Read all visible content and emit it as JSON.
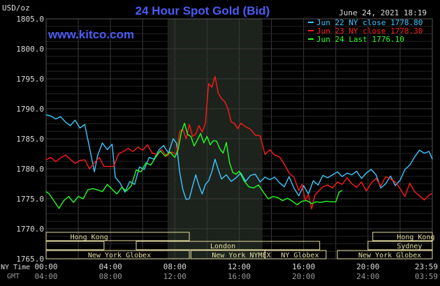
{
  "header": {
    "unit_label": "USD/oz",
    "title": "24 Hour Spot Gold (Bid)",
    "datetime": "June 24, 2021 18:19",
    "brand": "www.kitco.com"
  },
  "colors": {
    "background": "#000000",
    "title": "#4b5cf5",
    "brand": "#4b5cf5",
    "grid": "#3a3a3a",
    "session_shade": "#1c231c",
    "market_bar": "#e8dfa2",
    "series_jun22": "#3cc8ff",
    "series_jun23": "#ff1a1a",
    "series_jun24": "#22ff22",
    "axis_text": "#dddddd",
    "legend_text": "#ffffff"
  },
  "markets": {
    "row1": [
      "Hong Kong",
      "Hong Kong"
    ],
    "row2": [
      "London",
      "Sydney"
    ],
    "row3": [
      "New York Globex",
      "New York NYMEX",
      "NY Globex",
      "New York Globex"
    ]
  },
  "time_axis": {
    "row1_label": "NY Time",
    "row2_label": "GMT",
    "ny_ticks": [
      "00:00",
      "04:00",
      "08:00",
      "12:00",
      "16:00",
      "20:00",
      "23:59"
    ],
    "gmt_ticks": [
      "04:00",
      "08:00",
      "12:00",
      "16:00",
      "20:00",
      "24:00",
      "03:59"
    ]
  },
  "chart_data": {
    "type": "line",
    "title": "24 Hour Spot Gold (Bid)",
    "ylabel": "USD/oz",
    "xlabel": "",
    "x_unit": "hours (NY time)",
    "xlim": [
      0,
      24
    ],
    "ylim": [
      1765,
      1805
    ],
    "yticks": [
      "1765.0",
      "1770.0",
      "1775.0",
      "1780.0",
      "1785.0",
      "1790.0",
      "1795.0",
      "1800.0",
      "1805.0"
    ],
    "grid": true,
    "legend_position": "top-right",
    "series": [
      {
        "name": "Jun 22 NY close 1778.80",
        "color": "#3cc8ff",
        "points": [
          [
            0,
            1789
          ],
          [
            0.3,
            1788.8
          ],
          [
            0.6,
            1788.3
          ],
          [
            0.9,
            1788.7
          ],
          [
            1.2,
            1787.8
          ],
          [
            1.5,
            1787.2
          ],
          [
            1.8,
            1788.1
          ],
          [
            2.1,
            1786.8
          ],
          [
            2.4,
            1787.4
          ],
          [
            2.7,
            1783.5
          ],
          [
            3.0,
            1779.5
          ],
          [
            3.2,
            1782.2
          ],
          [
            3.5,
            1784.3
          ],
          [
            3.8,
            1783.2
          ],
          [
            4.1,
            1784.1
          ],
          [
            4.3,
            1778.6
          ],
          [
            4.6,
            1777.6
          ],
          [
            4.9,
            1776.1
          ],
          [
            5.2,
            1777.9
          ],
          [
            5.5,
            1777.4
          ],
          [
            5.8,
            1780.3
          ],
          [
            6.1,
            1779.9
          ],
          [
            6.4,
            1781.9
          ],
          [
            6.7,
            1781.6
          ],
          [
            7.0,
            1783.1
          ],
          [
            7.3,
            1783.9
          ],
          [
            7.6,
            1782.6
          ],
          [
            7.9,
            1785.0
          ],
          [
            8.1,
            1784.3
          ],
          [
            8.3,
            1779.5
          ],
          [
            8.5,
            1776.5
          ],
          [
            8.7,
            1774.9
          ],
          [
            8.9,
            1775.0
          ],
          [
            9.1,
            1777.1
          ],
          [
            9.3,
            1779.0
          ],
          [
            9.5,
            1777.2
          ],
          [
            9.7,
            1775.8
          ],
          [
            9.9,
            1777.4
          ],
          [
            10.1,
            1778.0
          ],
          [
            10.3,
            1779.5
          ],
          [
            10.5,
            1781.6
          ],
          [
            10.7,
            1779.9
          ],
          [
            10.9,
            1778.3
          ],
          [
            11.2,
            1779.0
          ],
          [
            11.5,
            1777.9
          ],
          [
            11.8,
            1778.5
          ],
          [
            12.1,
            1779.3
          ],
          [
            12.4,
            1777.9
          ],
          [
            12.7,
            1778.9
          ],
          [
            13.0,
            1779.1
          ],
          [
            13.3,
            1777.8
          ],
          [
            13.6,
            1778.6
          ],
          [
            13.9,
            1778.2
          ],
          [
            14.2,
            1778.6
          ],
          [
            14.5,
            1777.7
          ],
          [
            14.8,
            1777.0
          ],
          [
            15.1,
            1778.7
          ],
          [
            15.4,
            1776.8
          ],
          [
            15.7,
            1775.5
          ],
          [
            16.0,
            1777.2
          ],
          [
            16.3,
            1775.8
          ],
          [
            16.6,
            1778.0
          ],
          [
            16.9,
            1777.3
          ],
          [
            17.2,
            1778.9
          ],
          [
            17.5,
            1778.5
          ],
          [
            17.8,
            1779.0
          ],
          [
            18.1,
            1779.5
          ],
          [
            18.4,
            1778.7
          ],
          [
            18.7,
            1779.3
          ],
          [
            19.0,
            1779.0
          ],
          [
            19.3,
            1779.6
          ],
          [
            19.6,
            1778.4
          ],
          [
            19.9,
            1779.3
          ],
          [
            20.2,
            1779.9
          ],
          [
            20.5,
            1779.0
          ],
          [
            20.8,
            1776.8
          ],
          [
            21.1,
            1777.5
          ],
          [
            21.4,
            1778.8
          ],
          [
            21.7,
            1777.2
          ],
          [
            22.0,
            1778.1
          ],
          [
            22.3,
            1779.9
          ],
          [
            22.6,
            1780.6
          ],
          [
            22.9,
            1782.0
          ],
          [
            23.2,
            1783.1
          ],
          [
            23.5,
            1782.6
          ],
          [
            23.8,
            1782.9
          ],
          [
            24.0,
            1781.6
          ]
        ]
      },
      {
        "name": "Jun 23 NY close 1778.30",
        "color": "#ff1a1a",
        "points": [
          [
            0,
            1781.5
          ],
          [
            0.3,
            1781.9
          ],
          [
            0.6,
            1781.2
          ],
          [
            0.9,
            1781.8
          ],
          [
            1.2,
            1782.3
          ],
          [
            1.5,
            1781.6
          ],
          [
            1.8,
            1780.9
          ],
          [
            2.1,
            1781.4
          ],
          [
            2.4,
            1781.5
          ],
          [
            2.7,
            1780.0
          ],
          [
            3.0,
            1781.0
          ],
          [
            3.3,
            1781.9
          ],
          [
            3.6,
            1780.4
          ],
          [
            3.9,
            1780.4
          ],
          [
            4.2,
            1780.4
          ],
          [
            4.5,
            1782.5
          ],
          [
            4.8,
            1782.9
          ],
          [
            5.1,
            1783.4
          ],
          [
            5.4,
            1782.9
          ],
          [
            5.7,
            1783.6
          ],
          [
            6.0,
            1783.1
          ],
          [
            6.3,
            1784.0
          ],
          [
            6.6,
            1782.6
          ],
          [
            6.9,
            1782.4
          ],
          [
            7.2,
            1783.2
          ],
          [
            7.5,
            1782.1
          ],
          [
            7.8,
            1782.8
          ],
          [
            8.1,
            1782.4
          ],
          [
            8.3,
            1786.2
          ],
          [
            8.5,
            1786.6
          ],
          [
            8.7,
            1785.0
          ],
          [
            8.9,
            1787.4
          ],
          [
            9.1,
            1785.4
          ],
          [
            9.3,
            1785.8
          ],
          [
            9.5,
            1787.2
          ],
          [
            9.7,
            1786.1
          ],
          [
            9.9,
            1787.6
          ],
          [
            10.1,
            1794.2
          ],
          [
            10.3,
            1793.6
          ],
          [
            10.5,
            1795.4
          ],
          [
            10.7,
            1792.6
          ],
          [
            10.9,
            1791.7
          ],
          [
            11.1,
            1791.2
          ],
          [
            11.3,
            1790.0
          ],
          [
            11.5,
            1787.8
          ],
          [
            11.7,
            1787.6
          ],
          [
            11.9,
            1786.7
          ],
          [
            12.1,
            1787.6
          ],
          [
            12.4,
            1787.0
          ],
          [
            12.7,
            1786.6
          ],
          [
            13.0,
            1785.6
          ],
          [
            13.3,
            1785.5
          ],
          [
            13.6,
            1782.4
          ],
          [
            13.9,
            1783.2
          ],
          [
            14.2,
            1782.3
          ],
          [
            14.5,
            1782.0
          ],
          [
            14.8,
            1780.8
          ],
          [
            15.1,
            1779.3
          ],
          [
            15.4,
            1778.6
          ],
          [
            15.7,
            1776.4
          ],
          [
            15.9,
            1777.4
          ],
          [
            16.1,
            1774.8
          ],
          [
            16.3,
            1775.7
          ],
          [
            16.5,
            1773.3
          ],
          [
            16.7,
            1775.6
          ],
          [
            16.9,
            1776.2
          ],
          [
            17.2,
            1777.0
          ],
          [
            17.5,
            1777.3
          ],
          [
            17.8,
            1776.8
          ],
          [
            18.1,
            1777.8
          ],
          [
            18.4,
            1777.4
          ],
          [
            18.7,
            1778.5
          ],
          [
            19.0,
            1777.5
          ],
          [
            19.3,
            1776.9
          ],
          [
            19.6,
            1777.8
          ],
          [
            19.9,
            1776.3
          ],
          [
            20.2,
            1777.6
          ],
          [
            20.5,
            1778.4
          ],
          [
            20.8,
            1777.1
          ],
          [
            21.1,
            1778.7
          ],
          [
            21.4,
            1778.3
          ],
          [
            21.7,
            1777.8
          ],
          [
            22.0,
            1776.7
          ],
          [
            22.3,
            1775.4
          ],
          [
            22.6,
            1777.6
          ],
          [
            22.9,
            1776.2
          ],
          [
            23.2,
            1775.5
          ],
          [
            23.5,
            1774.8
          ],
          [
            23.8,
            1775.6
          ],
          [
            24.0,
            1775.9
          ]
        ]
      },
      {
        "name": "Jun 24 Last 1776.10",
        "color": "#22ff22",
        "points": [
          [
            0,
            1776.2
          ],
          [
            0.2,
            1775.8
          ],
          [
            0.5,
            1774.6
          ],
          [
            0.8,
            1773.4
          ],
          [
            1.1,
            1774.7
          ],
          [
            1.4,
            1775.4
          ],
          [
            1.7,
            1774.4
          ],
          [
            2.0,
            1775.4
          ],
          [
            2.3,
            1775.0
          ],
          [
            2.6,
            1776.5
          ],
          [
            2.9,
            1776.7
          ],
          [
            3.2,
            1776.5
          ],
          [
            3.5,
            1776.2
          ],
          [
            3.8,
            1777.4
          ],
          [
            4.1,
            1776.6
          ],
          [
            4.4,
            1775.8
          ],
          [
            4.7,
            1776.9
          ],
          [
            5.0,
            1776.3
          ],
          [
            5.3,
            1777.2
          ],
          [
            5.6,
            1779.8
          ],
          [
            5.9,
            1779.5
          ],
          [
            6.2,
            1781.0
          ],
          [
            6.5,
            1780.6
          ],
          [
            6.8,
            1781.9
          ],
          [
            7.1,
            1783.0
          ],
          [
            7.4,
            1782.1
          ],
          [
            7.7,
            1782.8
          ],
          [
            8.0,
            1781.9
          ],
          [
            8.2,
            1783.1
          ],
          [
            8.4,
            1786.1
          ],
          [
            8.6,
            1787.6
          ],
          [
            8.8,
            1785.7
          ],
          [
            9.0,
            1785.4
          ],
          [
            9.2,
            1783.8
          ],
          [
            9.4,
            1784.8
          ],
          [
            9.6,
            1785.9
          ],
          [
            9.8,
            1784.3
          ],
          [
            10.0,
            1785.4
          ],
          [
            10.2,
            1784.0
          ],
          [
            10.4,
            1784.7
          ],
          [
            10.6,
            1784.6
          ],
          [
            10.8,
            1783.3
          ],
          [
            11.0,
            1782.6
          ],
          [
            11.2,
            1784.4
          ],
          [
            11.4,
            1781.0
          ],
          [
            11.6,
            1779.4
          ],
          [
            11.8,
            1779.1
          ],
          [
            12.0,
            1779.6
          ],
          [
            12.3,
            1778.0
          ],
          [
            12.6,
            1777.0
          ],
          [
            12.9,
            1776.8
          ],
          [
            13.2,
            1777.3
          ],
          [
            13.5,
            1776.1
          ],
          [
            13.8,
            1775.0
          ],
          [
            14.1,
            1775.4
          ],
          [
            14.4,
            1775.2
          ],
          [
            14.7,
            1774.7
          ],
          [
            15.0,
            1775.1
          ],
          [
            15.3,
            1774.6
          ],
          [
            15.6,
            1774.0
          ],
          [
            15.9,
            1774.6
          ],
          [
            16.2,
            1774.7
          ],
          [
            16.5,
            1774.2
          ],
          [
            16.8,
            1774.5
          ],
          [
            17.1,
            1774.4
          ],
          [
            17.4,
            1774.6
          ],
          [
            17.7,
            1774.5
          ],
          [
            18.0,
            1774.5
          ],
          [
            18.2,
            1776.1
          ],
          [
            18.4,
            1776.4
          ]
        ]
      }
    ]
  }
}
